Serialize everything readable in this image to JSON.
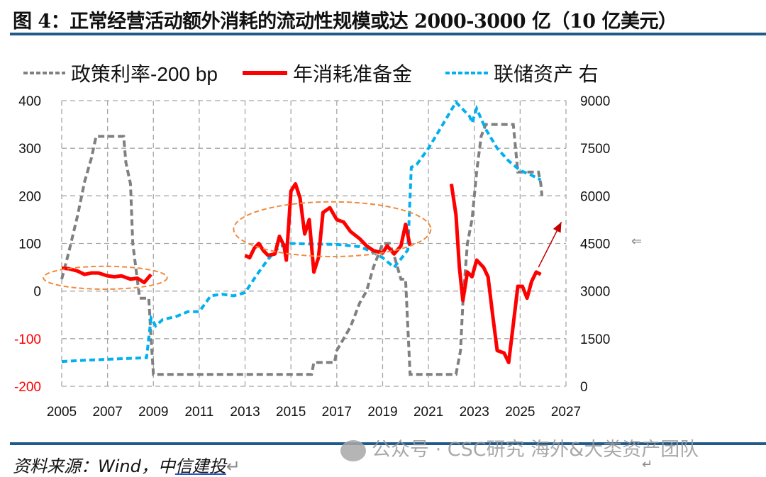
{
  "title": "图 4：正常经营活动额外消耗的流动性规模或达 2000-3000 亿（10 亿美元）",
  "footer": {
    "source_prefix": "资料来源：Wind，中",
    "source_underlined": "信建投",
    "mark": "↵"
  },
  "watermark": "公众号 · CSC研究 海外&大类资产团队",
  "return_marks": [
    "⇐",
    "↵"
  ],
  "chart_data": {
    "type": "line",
    "title": "",
    "legend": {
      "placement": "top",
      "entries": [
        "政策利率-200 bp",
        "年消耗准备金",
        "联储资产 右"
      ]
    },
    "colors": {
      "policy": "#808080",
      "reserves": "#ff0000",
      "fed": "#00b0f0",
      "annot": "#f08a3c",
      "arrow": "#c00000"
    },
    "x_ticks": [
      "2005",
      "2007",
      "2009",
      "2011",
      "2013",
      "2015",
      "2017",
      "2019",
      "2021",
      "2023",
      "2025",
      "2027"
    ],
    "xlim": [
      2005,
      2027
    ],
    "y_left": {
      "ylim": [
        -200,
        400
      ],
      "ticks": [
        "400",
        "300",
        "200",
        "100",
        "0",
        "-100",
        "-200"
      ]
    },
    "y_right": {
      "ylim": [
        0,
        9000
      ],
      "ticks": [
        "9000",
        "7500",
        "6000",
        "4500",
        "3000",
        "1500",
        "0"
      ]
    },
    "grid": true,
    "series": [
      {
        "name": "政策利率-200 bp",
        "axis": "left",
        "style": "dashed",
        "points": [
          [
            2005.0,
            25
          ],
          [
            2005.3,
            80
          ],
          [
            2005.7,
            160
          ],
          [
            2006.0,
            230
          ],
          [
            2006.3,
            280
          ],
          [
            2006.5,
            325
          ],
          [
            2007.7,
            325
          ],
          [
            2007.8,
            270
          ],
          [
            2008.0,
            225
          ],
          [
            2008.1,
            100
          ],
          [
            2008.4,
            -15
          ],
          [
            2008.8,
            -15
          ],
          [
            2008.9,
            -100
          ],
          [
            2009.0,
            -175
          ],
          [
            2015.9,
            -175
          ],
          [
            2016.0,
            -150
          ],
          [
            2016.9,
            -150
          ],
          [
            2017.0,
            -125
          ],
          [
            2017.3,
            -100
          ],
          [
            2017.6,
            -75
          ],
          [
            2018.0,
            -25
          ],
          [
            2018.3,
            0
          ],
          [
            2018.6,
            50
          ],
          [
            2019.0,
            100
          ],
          [
            2019.3,
            100
          ],
          [
            2019.5,
            75
          ],
          [
            2019.8,
            25
          ],
          [
            2020.0,
            25
          ],
          [
            2020.2,
            -175
          ],
          [
            2022.2,
            -175
          ],
          [
            2022.4,
            -125
          ],
          [
            2022.5,
            -25
          ],
          [
            2022.7,
            100
          ],
          [
            2022.9,
            150
          ],
          [
            2023.1,
            250
          ],
          [
            2023.3,
            325
          ],
          [
            2023.5,
            350
          ],
          [
            2024.7,
            350
          ],
          [
            2024.8,
            300
          ],
          [
            2024.9,
            250
          ],
          [
            2025.8,
            250
          ],
          [
            2025.9,
            225
          ],
          [
            2025.95,
            200
          ]
        ]
      },
      {
        "name": "年消耗准备金",
        "axis": "left",
        "style": "solid",
        "segments": [
          [
            [
              2005.0,
              48
            ],
            [
              2005.3,
              47
            ],
            [
              2005.7,
              42
            ],
            [
              2006.0,
              35
            ],
            [
              2006.3,
              38
            ],
            [
              2006.6,
              38
            ],
            [
              2007.0,
              32
            ],
            [
              2007.3,
              30
            ],
            [
              2007.6,
              32
            ],
            [
              2008.0,
              25
            ],
            [
              2008.3,
              27
            ],
            [
              2008.6,
              18
            ],
            [
              2008.9,
              35
            ]
          ],
          [
            [
              2013.0,
              75
            ],
            [
              2013.2,
              70
            ],
            [
              2013.4,
              90
            ],
            [
              2013.6,
              100
            ],
            [
              2013.8,
              85
            ],
            [
              2014.0,
              75
            ],
            [
              2014.3,
              78
            ],
            [
              2014.5,
              115
            ],
            [
              2014.7,
              95
            ],
            [
              2014.8,
              65
            ],
            [
              2015.0,
              210
            ],
            [
              2015.2,
              225
            ],
            [
              2015.4,
              195
            ],
            [
              2015.6,
              120
            ],
            [
              2015.8,
              150
            ],
            [
              2016.0,
              40
            ],
            [
              2016.2,
              70
            ],
            [
              2016.4,
              165
            ],
            [
              2016.7,
              175
            ],
            [
              2017.0,
              150
            ],
            [
              2017.3,
              145
            ],
            [
              2017.6,
              125
            ],
            [
              2018.0,
              110
            ],
            [
              2018.3,
              95
            ],
            [
              2018.6,
              85
            ],
            [
              2019.0,
              80
            ],
            [
              2019.2,
              95
            ],
            [
              2019.5,
              78
            ],
            [
              2019.8,
              95
            ],
            [
              2020.0,
              140
            ],
            [
              2020.2,
              95
            ]
          ],
          [
            [
              2022.0,
              225
            ],
            [
              2022.2,
              160
            ],
            [
              2022.35,
              50
            ],
            [
              2022.5,
              -20
            ],
            [
              2022.7,
              40
            ],
            [
              2022.9,
              30
            ],
            [
              2023.1,
              65
            ],
            [
              2023.4,
              50
            ],
            [
              2023.6,
              30
            ],
            [
              2023.8,
              -50
            ],
            [
              2024.0,
              -125
            ],
            [
              2024.3,
              -130
            ],
            [
              2024.5,
              -150
            ],
            [
              2024.7,
              -70
            ],
            [
              2024.9,
              10
            ],
            [
              2025.1,
              10
            ],
            [
              2025.3,
              -15
            ],
            [
              2025.5,
              20
            ],
            [
              2025.7,
              40
            ],
            [
              2025.9,
              35
            ]
          ]
        ]
      },
      {
        "name": "联储资产 右",
        "axis": "right",
        "style": "dotted",
        "points": [
          [
            2005.0,
            780
          ],
          [
            2006.0,
            820
          ],
          [
            2007.0,
            850
          ],
          [
            2008.0,
            880
          ],
          [
            2008.7,
            900
          ],
          [
            2008.9,
            2150
          ],
          [
            2009.1,
            1900
          ],
          [
            2009.4,
            2100
          ],
          [
            2010.0,
            2200
          ],
          [
            2010.5,
            2350
          ],
          [
            2011.0,
            2350
          ],
          [
            2011.5,
            2850
          ],
          [
            2012.0,
            2900
          ],
          [
            2012.5,
            2850
          ],
          [
            2013.0,
            2950
          ],
          [
            2013.5,
            3500
          ],
          [
            2014.0,
            4000
          ],
          [
            2014.5,
            4400
          ],
          [
            2015.0,
            4500
          ],
          [
            2016.0,
            4480
          ],
          [
            2017.0,
            4470
          ],
          [
            2018.0,
            4400
          ],
          [
            2018.5,
            4250
          ],
          [
            2019.0,
            4050
          ],
          [
            2019.5,
            3750
          ],
          [
            2019.9,
            4100
          ],
          [
            2020.1,
            4300
          ],
          [
            2020.25,
            6900
          ],
          [
            2020.5,
            7000
          ],
          [
            2021.0,
            7500
          ],
          [
            2021.5,
            8100
          ],
          [
            2022.2,
            8950
          ],
          [
            2022.8,
            8500
          ],
          [
            2022.9,
            8300
          ],
          [
            2023.1,
            8750
          ],
          [
            2023.5,
            8100
          ],
          [
            2024.0,
            7500
          ],
          [
            2024.5,
            7100
          ],
          [
            2025.0,
            6800
          ],
          [
            2025.5,
            6650
          ],
          [
            2025.9,
            6500
          ]
        ]
      }
    ],
    "annotations": {
      "ellipses": [
        {
          "center": [
            2006.9,
            28
          ],
          "rx_years": 5.4,
          "ry_units": 48
        },
        {
          "center": [
            2016.8,
            130
          ],
          "rx_years": 8.6,
          "ry_units": 115
        }
      ],
      "arrow": {
        "from": [
          2025.8,
          50
        ],
        "to": [
          2026.8,
          145
        ]
      }
    }
  }
}
